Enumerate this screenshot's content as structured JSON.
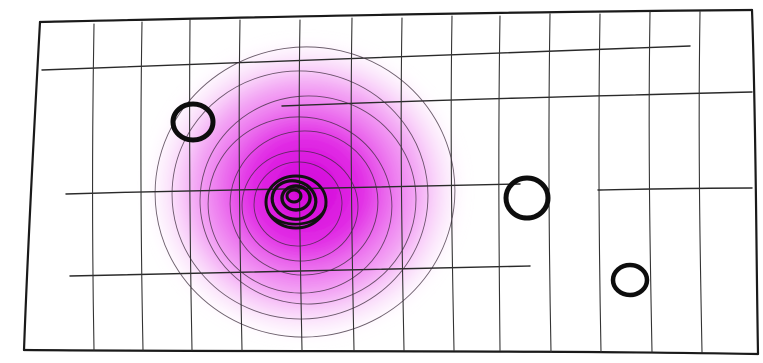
{
  "sketch": {
    "ink_color": "#1a1a1a",
    "glow_color": "#e000e0",
    "paper_color": "#ffffff"
  }
}
